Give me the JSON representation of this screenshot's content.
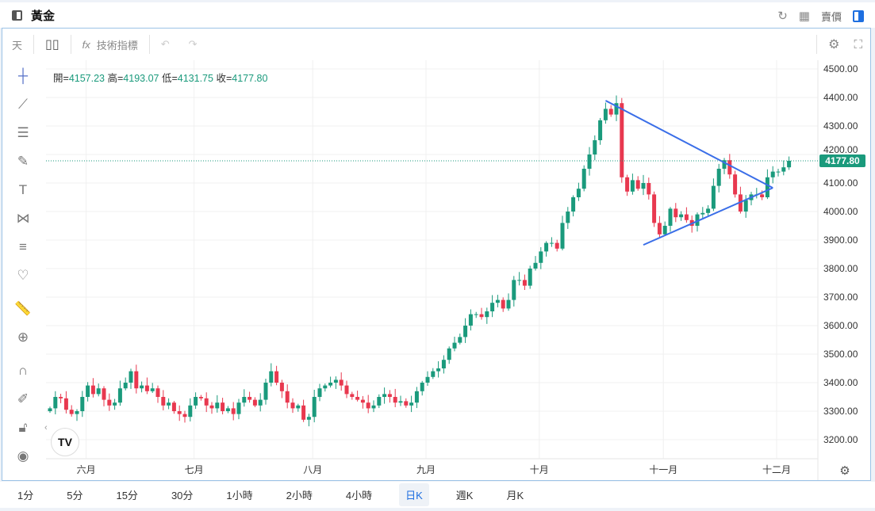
{
  "header": {
    "title": "黃金",
    "price_label": "賣價"
  },
  "toolbar": {
    "period": "天",
    "indicators": "技術指標"
  },
  "ohlc": {
    "open_label": "開=",
    "open": "4157.23",
    "high_label": "高=",
    "high": "4193.07",
    "low_label": "低=",
    "low": "4131.75",
    "close_label": "收=",
    "close": "4177.80"
  },
  "colors": {
    "up": "#1a9a7c",
    "down": "#e8384f",
    "trend": "#3a6ee8",
    "accent": "#1e6fe0"
  },
  "timeframes": [
    {
      "label": "1分"
    },
    {
      "label": "5分"
    },
    {
      "label": "15分"
    },
    {
      "label": "30分"
    },
    {
      "label": "1小時"
    },
    {
      "label": "2小時"
    },
    {
      "label": "4小時"
    },
    {
      "label": "日K",
      "active": true
    },
    {
      "label": "週K"
    },
    {
      "label": "月K"
    }
  ],
  "chart_data": {
    "type": "candlestick",
    "ylim": [
      3130,
      4530
    ],
    "yticks": [
      "4500.00",
      "4400.00",
      "4300.00",
      "4200.00",
      "4100.00",
      "4000.00",
      "3900.00",
      "3800.00",
      "3700.00",
      "3600.00",
      "3500.00",
      "3400.00",
      "3300.00",
      "3200.00"
    ],
    "ytick_values": [
      4500,
      4400,
      4300,
      4200,
      4100,
      4000,
      3900,
      3800,
      3700,
      3600,
      3500,
      3400,
      3300,
      3200
    ],
    "xticks": [
      {
        "label": "六月",
        "index": 7
      },
      {
        "label": "七月",
        "index": 27
      },
      {
        "label": "八月",
        "index": 49
      },
      {
        "label": "九月",
        "index": 70
      },
      {
        "label": "十月",
        "index": 91
      },
      {
        "label": "十一月",
        "index": 114
      },
      {
        "label": "十二月",
        "index": 135
      }
    ],
    "last_price": 4177.8,
    "last_price_label": "4177.80",
    "start": 3300,
    "closes": [
      3310,
      3350,
      3345,
      3305,
      3290,
      3300,
      3350,
      3390,
      3360,
      3380,
      3340,
      3320,
      3330,
      3380,
      3400,
      3440,
      3380,
      3390,
      3370,
      3380,
      3350,
      3320,
      3330,
      3300,
      3290,
      3280,
      3320,
      3350,
      3345,
      3320,
      3310,
      3330,
      3300,
      3310,
      3290,
      3330,
      3350,
      3340,
      3320,
      3340,
      3400,
      3440,
      3400,
      3370,
      3330,
      3310,
      3320,
      3270,
      3280,
      3350,
      3380,
      3390,
      3400,
      3410,
      3390,
      3360,
      3350,
      3340,
      3330,
      3310,
      3320,
      3350,
      3360,
      3350,
      3330,
      3335,
      3320,
      3330,
      3370,
      3400,
      3420,
      3440,
      3450,
      3480,
      3520,
      3540,
      3560,
      3600,
      3640,
      3640,
      3630,
      3650,
      3680,
      3690,
      3660,
      3690,
      3760,
      3760,
      3740,
      3800,
      3820,
      3860,
      3890,
      3890,
      3870,
      3960,
      4000,
      4050,
      4080,
      4150,
      4200,
      4250,
      4320,
      4360,
      4340,
      4380,
      4120,
      4070,
      4110,
      4080,
      4100,
      4060,
      3960,
      3920,
      3950,
      4010,
      3980,
      3990,
      3970,
      3950,
      3990,
      3995,
      4010,
      4090,
      4150,
      4180,
      4130,
      4060,
      4000,
      4040,
      4060,
      4060,
      4050,
      4120,
      4140,
      4140,
      4155,
      4178
    ],
    "trendlines": [
      {
        "from": [
          103,
          4389
        ],
        "to": [
          134,
          4083
        ]
      },
      {
        "from": [
          110,
          3883
        ],
        "to": [
          134,
          4083
        ]
      }
    ]
  }
}
